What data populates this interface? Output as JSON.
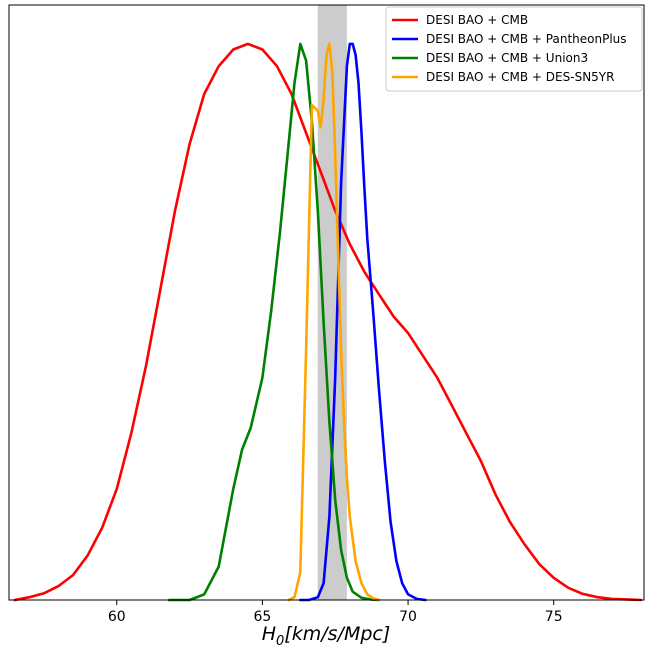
{
  "chart_data": {
    "type": "line",
    "title": "",
    "xlabel_main": "H",
    "xlabel_sub": "0",
    "xlabel_rest": "[km/s/Mpc]",
    "ylabel": "",
    "xlim": [
      56.3,
      78.1
    ],
    "ylim": [
      0,
      1.07
    ],
    "xticks": [
      60,
      65,
      70,
      75
    ],
    "xtick_labels": [
      "60",
      "65",
      "70",
      "75"
    ],
    "grid": false,
    "legend_position": "top-right",
    "shaded_band": {
      "x0": 66.9,
      "x1": 67.9,
      "color": "#cccccc"
    },
    "series": [
      {
        "name": "DESI BAO + CMB",
        "color": "#ff0000",
        "x": [
          56.5,
          57.0,
          57.5,
          58.0,
          58.5,
          59.0,
          59.5,
          60.0,
          60.5,
          61.0,
          61.5,
          62.0,
          62.5,
          63.0,
          63.5,
          64.0,
          64.5,
          65.0,
          65.5,
          66.0,
          66.5,
          67.0,
          67.5,
          68.0,
          68.5,
          69.0,
          69.5,
          70.0,
          70.5,
          71.0,
          71.5,
          72.0,
          72.5,
          73.0,
          73.5,
          74.0,
          74.5,
          75.0,
          75.5,
          76.0,
          76.5,
          77.0,
          77.5,
          78.0
        ],
        "y": [
          0.0,
          0.005,
          0.012,
          0.025,
          0.045,
          0.08,
          0.13,
          0.2,
          0.3,
          0.42,
          0.56,
          0.7,
          0.82,
          0.91,
          0.96,
          0.99,
          1.0,
          0.99,
          0.96,
          0.91,
          0.84,
          0.77,
          0.7,
          0.64,
          0.59,
          0.55,
          0.51,
          0.48,
          0.44,
          0.4,
          0.35,
          0.3,
          0.25,
          0.19,
          0.14,
          0.1,
          0.065,
          0.04,
          0.022,
          0.011,
          0.005,
          0.002,
          0.001,
          0.0
        ]
      },
      {
        "name": "DESI BAO + CMB + PantheonPlus",
        "color": "#0000ff",
        "x": [
          66.3,
          66.6,
          66.9,
          67.1,
          67.3,
          67.5,
          67.7,
          67.9,
          68.0,
          68.1,
          68.2,
          68.3,
          68.4,
          68.5,
          68.6,
          68.8,
          69.0,
          69.2,
          69.4,
          69.6,
          69.8,
          70.0,
          70.3,
          70.6
        ],
        "y": [
          0.0,
          0.0,
          0.005,
          0.03,
          0.15,
          0.4,
          0.75,
          0.96,
          1.0,
          1.0,
          0.98,
          0.93,
          0.84,
          0.74,
          0.65,
          0.52,
          0.38,
          0.25,
          0.14,
          0.07,
          0.03,
          0.01,
          0.002,
          0.0
        ]
      },
      {
        "name": "DESI BAO + CMB + Union3",
        "color": "#008000",
        "x": [
          61.8,
          62.5,
          63.0,
          63.5,
          64.0,
          64.3,
          64.6,
          65.0,
          65.3,
          65.6,
          65.9,
          66.1,
          66.3,
          66.5,
          66.7,
          66.9,
          67.1,
          67.3,
          67.5,
          67.7,
          67.9,
          68.1,
          68.4,
          68.7,
          69.0
        ],
        "y": [
          0.0,
          0.0,
          0.01,
          0.06,
          0.2,
          0.27,
          0.31,
          0.4,
          0.52,
          0.66,
          0.82,
          0.93,
          1.0,
          0.97,
          0.86,
          0.7,
          0.5,
          0.32,
          0.18,
          0.09,
          0.04,
          0.015,
          0.004,
          0.001,
          0.0
        ]
      },
      {
        "name": "DESI BAO + CMB + DES-SN5YR",
        "color": "#ffa500",
        "x": [
          65.9,
          66.1,
          66.3,
          66.5,
          66.7,
          66.9,
          67.0,
          67.1,
          67.2,
          67.3,
          67.4,
          67.5,
          67.6,
          67.7,
          67.8,
          67.9,
          68.0,
          68.2,
          68.4,
          68.6,
          68.8,
          69.0
        ],
        "y": [
          0.0,
          0.005,
          0.05,
          0.45,
          0.89,
          0.88,
          0.85,
          0.9,
          0.98,
          1.0,
          0.95,
          0.8,
          0.62,
          0.45,
          0.32,
          0.22,
          0.15,
          0.07,
          0.03,
          0.01,
          0.003,
          0.0
        ]
      }
    ]
  }
}
